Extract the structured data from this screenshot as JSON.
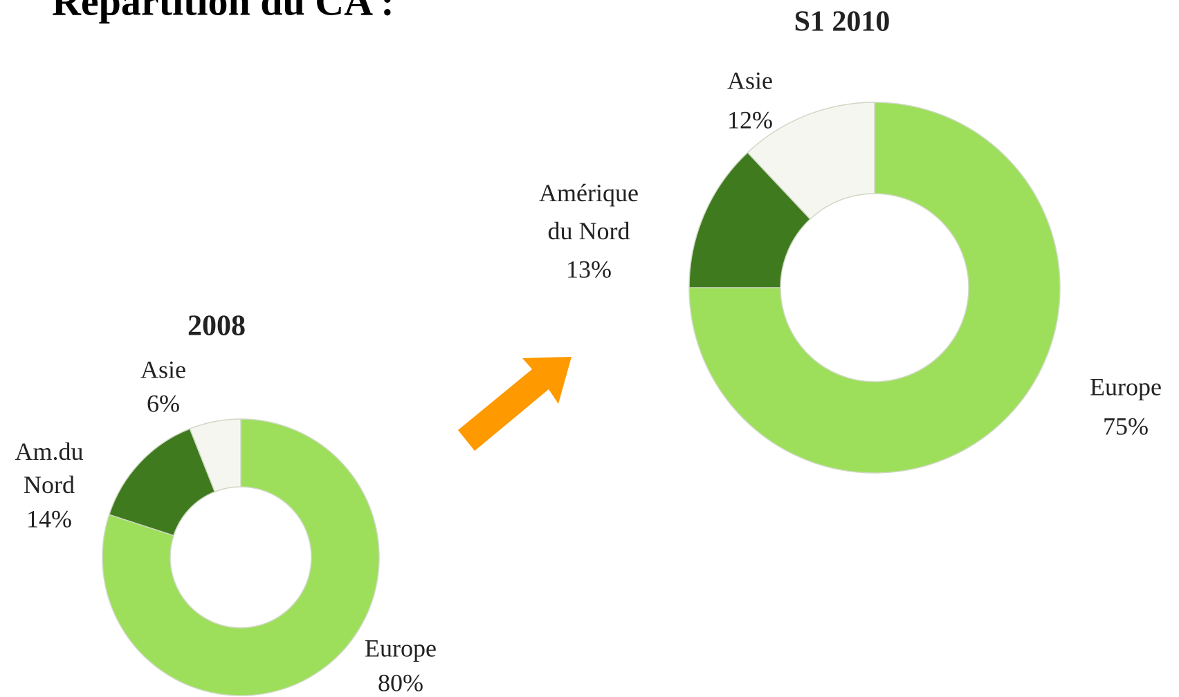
{
  "title": "Répartition du CA :",
  "chart_data": [
    {
      "type": "donut",
      "title": "2008",
      "categories": [
        "Europe",
        "Am.du Nord",
        "Asie"
      ],
      "values": [
        80,
        14,
        6
      ],
      "value_labels": [
        "80%",
        "14%",
        "6%"
      ],
      "colors": [
        "#9ddf5a",
        "#3f7a1e",
        "#f6f6f1"
      ]
    },
    {
      "type": "donut",
      "title": "S1 2010",
      "categories": [
        "Europe",
        "Amérique du Nord",
        "Asie"
      ],
      "values": [
        75,
        13,
        12
      ],
      "value_labels": [
        "75%",
        "13%",
        "12%"
      ],
      "colors": [
        "#9ddf5a",
        "#3f7a1e",
        "#f6f6f1"
      ]
    }
  ]
}
